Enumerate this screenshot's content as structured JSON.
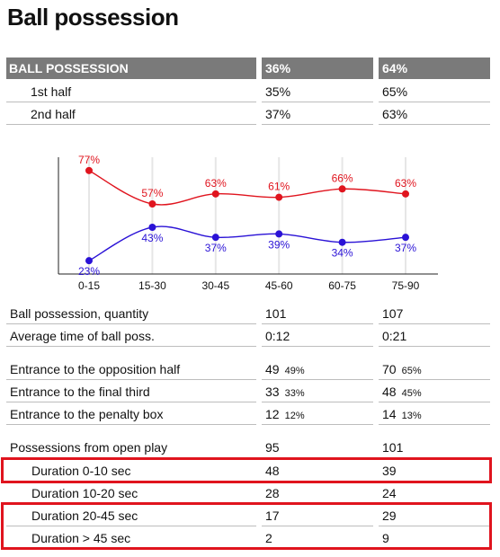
{
  "title": "Ball possession",
  "summary": {
    "header": {
      "label": "BALL POSSESSION",
      "team1": "36%",
      "team2": "64%"
    },
    "rows": [
      {
        "label": "1st half",
        "team1": "35%",
        "team2": "65%"
      },
      {
        "label": "2nd half",
        "team1": "37%",
        "team2": "63%"
      }
    ]
  },
  "chart_data": {
    "type": "line",
    "x": [
      "0-15",
      "15-30",
      "30-45",
      "45-60",
      "60-75",
      "75-90"
    ],
    "series": [
      {
        "values": [
          77,
          57,
          63,
          61,
          66,
          63
        ],
        "labels": [
          "77%",
          "57%",
          "63%",
          "61%",
          "66%",
          "63%"
        ],
        "color": "#e0141e"
      },
      {
        "values": [
          23,
          43,
          37,
          39,
          34,
          37
        ],
        "labels": [
          "23%",
          "43%",
          "37%",
          "39%",
          "34%",
          "37%"
        ],
        "color": "#2a12d6"
      }
    ],
    "ylim": [
      15,
      85
    ],
    "title": "",
    "xlabel": "",
    "ylabel": "",
    "grid": "vertical-only",
    "interpolation": "smooth"
  },
  "stats": {
    "quantity": {
      "label": "Ball possession, quantity",
      "team1": "101",
      "team2": "107"
    },
    "avg_time": {
      "label": "Average time of ball poss.",
      "team1": "0:12",
      "team2": "0:21"
    },
    "opp_half": {
      "label": "Entrance to the opposition half",
      "team1": "49",
      "team1_pct": "49%",
      "team2": "70",
      "team2_pct": "65%"
    },
    "final_third": {
      "label": "Entrance to the final third",
      "team1": "33",
      "team1_pct": "33%",
      "team2": "48",
      "team2_pct": "45%"
    },
    "penalty_box": {
      "label": "Entrance to the penalty box",
      "team1": "12",
      "team1_pct": "12%",
      "team2": "14",
      "team2_pct": "13%"
    },
    "open_play": {
      "label": "Possessions from open play",
      "team1": "95",
      "team2": "101"
    },
    "durations": [
      {
        "label": "Duration  0-10 sec",
        "team1": "48",
        "team2": "39"
      },
      {
        "label": "Duration  10-20 sec",
        "team1": "28",
        "team2": "24"
      },
      {
        "label": "Duration  20-45 sec",
        "team1": "17",
        "team2": "29"
      },
      {
        "label": "Duration  > 45 sec",
        "team1": "2",
        "team2": "9"
      }
    ]
  },
  "highlight_color": "#e0141e"
}
